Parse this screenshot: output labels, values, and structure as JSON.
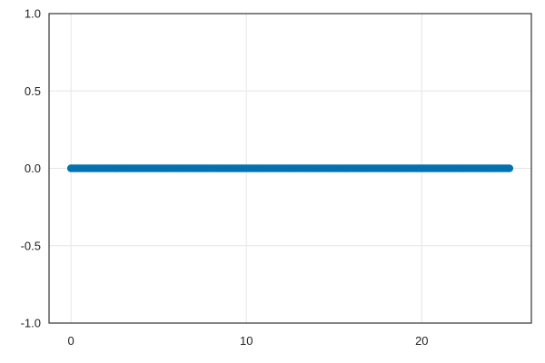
{
  "chart_data": {
    "type": "scatter",
    "title": "",
    "xlabel": "",
    "ylabel": "",
    "xlim": [
      -1.25,
      26.25
    ],
    "ylim": [
      -1.0,
      1.0
    ],
    "grid": true,
    "legend": "none",
    "x_ticks": [
      {
        "value": 0,
        "label": "0"
      },
      {
        "value": 10,
        "label": "10"
      },
      {
        "value": 20,
        "label": "20"
      }
    ],
    "y_ticks": [
      {
        "value": 1.0,
        "label": "1.0"
      },
      {
        "value": 0.5,
        "label": "0.5"
      },
      {
        "value": 0.0,
        "label": "0.0"
      },
      {
        "value": -0.5,
        "label": "-0.5"
      },
      {
        "value": -1.0,
        "label": "-1.0"
      }
    ],
    "series": [
      {
        "color": "#0072b2",
        "x_start": 0,
        "x_end": 25,
        "point_count": 251,
        "y_constant": 0
      }
    ]
  }
}
